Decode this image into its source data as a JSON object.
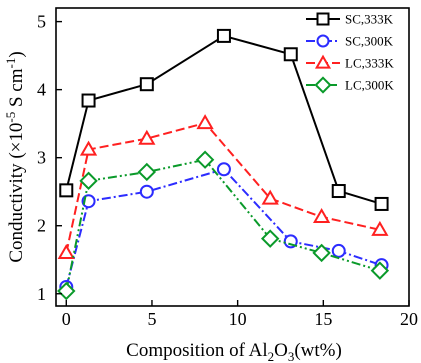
{
  "chart_data": {
    "type": "line",
    "xlabel": {
      "prefix": "Composition of Al",
      "sub1": "2",
      "mid": "O",
      "sub2": "3",
      "suffix": "(wt%)"
    },
    "ylabel": {
      "prefix": "Conductivity (×10",
      "sup1": "-5",
      "mid": " S cm",
      "sup2": "-1",
      "suffix": ")"
    },
    "xlim": [
      -0.6,
      20
    ],
    "ylim": [
      0.82,
      5.2
    ],
    "xticks": [
      0,
      5,
      10,
      15,
      20
    ],
    "yticks": [
      1,
      2,
      3,
      4,
      5
    ],
    "grid": false,
    "legend_position": "top-right",
    "series": [
      {
        "name": "SC,333K",
        "color": "#000000",
        "marker": "square",
        "line_style": "solid",
        "x": [
          0,
          1.3,
          4.7,
          9.2,
          13.1,
          15.9,
          18.4
        ],
        "y": [
          2.52,
          3.84,
          4.08,
          4.79,
          4.52,
          2.51,
          2.32
        ]
      },
      {
        "name": "SC,300K",
        "color": "#2c2cff",
        "marker": "circle",
        "line_style": "dash-dot",
        "x": [
          0,
          1.3,
          4.7,
          9.2,
          13.1,
          15.9,
          18.4
        ],
        "y": [
          1.1,
          2.36,
          2.5,
          2.83,
          1.77,
          1.63,
          1.42
        ]
      },
      {
        "name": "LC,333K",
        "color": "#ff2020",
        "marker": "triangle",
        "line_style": "dashed",
        "x": [
          0,
          1.3,
          4.7,
          8.1,
          11.9,
          14.9,
          18.3
        ],
        "y": [
          1.6,
          3.12,
          3.28,
          3.51,
          2.4,
          2.13,
          1.94
        ]
      },
      {
        "name": "LC,300K",
        "color": "#0a9a2a",
        "marker": "diamond",
        "line_style": "dash-dot-dot",
        "x": [
          0,
          1.3,
          4.7,
          8.1,
          11.9,
          14.9,
          18.3
        ],
        "y": [
          1.04,
          2.66,
          2.79,
          2.97,
          1.81,
          1.6,
          1.34
        ]
      }
    ]
  }
}
